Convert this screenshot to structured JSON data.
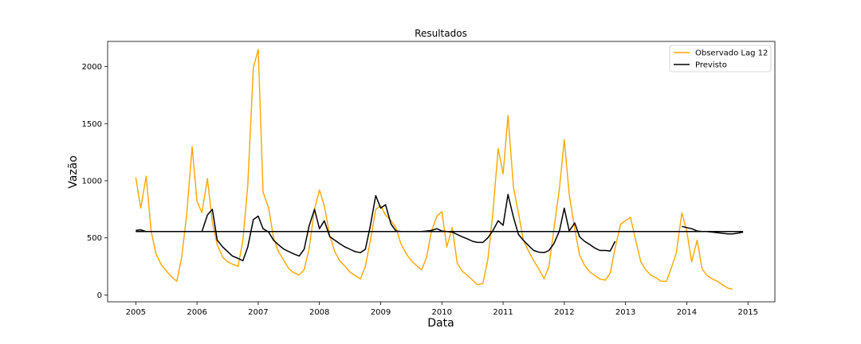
{
  "chart_data": {
    "type": "line",
    "title": "Resultados",
    "xlabel": "Data",
    "ylabel": "Vazão",
    "xlim": [
      2004.54,
      2015.44
    ],
    "ylim": [
      -60,
      2220
    ],
    "xticks": [
      2005,
      2006,
      2007,
      2008,
      2009,
      2010,
      2011,
      2012,
      2013,
      2014,
      2015
    ],
    "yticks": [
      0,
      500,
      1000,
      1500,
      2000
    ],
    "grid": false,
    "legend_position": "top-right",
    "series": [
      {
        "name": "Observado Lag 12",
        "color": "#FFA500",
        "x": [
          2005.0,
          2005.08,
          2005.17,
          2005.25,
          2005.33,
          2005.42,
          2005.5,
          2005.58,
          2005.67,
          2005.75,
          2005.83,
          2005.92,
          2006.0,
          2006.08,
          2006.17,
          2006.25,
          2006.33,
          2006.42,
          2006.5,
          2006.58,
          2006.67,
          2006.75,
          2006.83,
          2006.92,
          2007.0,
          2007.08,
          2007.17,
          2007.25,
          2007.33,
          2007.42,
          2007.5,
          2007.58,
          2007.67,
          2007.75,
          2007.83,
          2007.92,
          2008.0,
          2008.08,
          2008.17,
          2008.25,
          2008.33,
          2008.42,
          2008.5,
          2008.58,
          2008.67,
          2008.75,
          2008.83,
          2008.92,
          2009.0,
          2009.08,
          2009.17,
          2009.25,
          2009.33,
          2009.42,
          2009.5,
          2009.58,
          2009.67,
          2009.75,
          2009.83,
          2009.92,
          2010.0,
          2010.08,
          2010.17,
          2010.25,
          2010.33,
          2010.42,
          2010.5,
          2010.58,
          2010.67,
          2010.75,
          2010.83,
          2010.92,
          2011.0,
          2011.08,
          2011.17,
          2011.25,
          2011.33,
          2011.42,
          2011.5,
          2011.58,
          2011.67,
          2011.75,
          2011.83,
          2011.92,
          2012.0,
          2012.08,
          2012.17,
          2012.25,
          2012.33,
          2012.42,
          2012.5,
          2012.58,
          2012.67,
          2012.75,
          2012.83,
          2012.92,
          2013.0,
          2013.08,
          2013.17,
          2013.25,
          2013.33,
          2013.42,
          2013.5,
          2013.58,
          2013.67,
          2013.75,
          2013.83,
          2013.92,
          2014.0,
          2014.08,
          2014.17,
          2014.25,
          2014.33,
          2014.42,
          2014.5,
          2014.58,
          2014.67,
          2014.75
        ],
        "y": [
          1030,
          760,
          1040,
          560,
          360,
          260,
          210,
          160,
          120,
          330,
          700,
          1300,
          820,
          720,
          1020,
          640,
          440,
          330,
          290,
          270,
          250,
          480,
          960,
          1990,
          2150,
          900,
          760,
          500,
          380,
          300,
          230,
          195,
          175,
          220,
          400,
          750,
          920,
          780,
          520,
          380,
          300,
          250,
          200,
          170,
          140,
          250,
          470,
          750,
          780,
          700,
          650,
          590,
          450,
          360,
          300,
          260,
          220,
          330,
          560,
          690,
          730,
          420,
          590,
          280,
          210,
          170,
          130,
          90,
          100,
          310,
          700,
          1280,
          1060,
          1570,
          940,
          720,
          480,
          380,
          300,
          230,
          140,
          250,
          580,
          930,
          1360,
          880,
          580,
          350,
          260,
          200,
          170,
          140,
          130,
          190,
          410,
          620,
          650,
          680,
          470,
          290,
          220,
          170,
          150,
          120,
          120,
          240,
          370,
          720,
          560,
          290,
          480,
          230,
          170,
          140,
          120,
          90,
          60,
          50
        ]
      },
      {
        "name": "Previsto",
        "color": "#000000",
        "x": [
          2005.0,
          2005.08,
          2005.17,
          2005.25,
          2005.33,
          2005.42,
          2005.5,
          2005.58,
          2005.67,
          2005.75,
          2005.83,
          2005.92,
          2006.0,
          2006.08,
          2006.17,
          2006.25,
          2006.33,
          2006.42,
          2006.5,
          2006.58,
          2006.67,
          2006.75,
          2006.83,
          2006.92,
          2007.0,
          2007.08,
          2007.17,
          2007.25,
          2007.33,
          2007.42,
          2007.5,
          2007.58,
          2007.67,
          2007.75,
          2007.83,
          2007.92,
          2008.0,
          2008.08,
          2008.17,
          2008.25,
          2008.33,
          2008.42,
          2008.5,
          2008.58,
          2008.67,
          2008.75,
          2008.83,
          2008.92,
          2009.0,
          2009.08,
          2009.17,
          2009.25,
          2009.33,
          2009.42,
          2009.5,
          2009.58,
          2009.67,
          2009.75,
          2009.83,
          2009.92,
          2010.0,
          2010.08,
          2010.17,
          2010.25,
          2010.33,
          2010.42,
          2010.5,
          2010.58,
          2010.67,
          2010.75,
          2010.83,
          2010.92,
          2011.0,
          2011.08,
          2011.17,
          2011.25,
          2011.33,
          2011.42,
          2011.5,
          2011.58,
          2011.67,
          2011.75,
          2011.83,
          2011.92,
          2012.0,
          2012.08,
          2012.17,
          2012.25,
          2012.33,
          2012.42,
          2012.5,
          2012.58,
          2012.67,
          2012.75,
          2012.83
        ],
        "y": [
          565,
          570,
          555,
          555,
          555,
          555,
          555,
          555,
          555,
          555,
          555,
          555,
          555,
          555,
          700,
          750,
          480,
          420,
          380,
          340,
          320,
          300,
          420,
          660,
          690,
          580,
          550,
          480,
          440,
          400,
          380,
          360,
          340,
          400,
          600,
          750,
          580,
          650,
          510,
          480,
          450,
          420,
          400,
          380,
          370,
          400,
          600,
          870,
          760,
          790,
          620,
          560,
          555,
          555,
          555,
          555,
          555,
          560,
          565,
          580,
          560,
          555,
          550,
          530,
          510,
          490,
          470,
          460,
          460,
          500,
          560,
          650,
          610,
          880,
          680,
          530,
          480,
          430,
          390,
          375,
          370,
          390,
          450,
          560,
          760,
          560,
          630,
          510,
          470,
          440,
          410,
          390,
          390,
          385,
          470
        ]
      },
      {
        "name": "",
        "color": "#000000",
        "x": [
          2005.0,
          2014.92
        ],
        "y": [
          555,
          555
        ]
      },
      {
        "name": "",
        "color": "#000000",
        "x": [
          2013.92,
          2014.0,
          2014.08,
          2014.17,
          2014.25,
          2014.33,
          2014.42,
          2014.5,
          2014.58,
          2014.67,
          2014.75,
          2014.83,
          2014.92
        ],
        "y": [
          600,
          590,
          580,
          560,
          555,
          555,
          550,
          545,
          540,
          535,
          535,
          540,
          550
        ]
      }
    ]
  }
}
